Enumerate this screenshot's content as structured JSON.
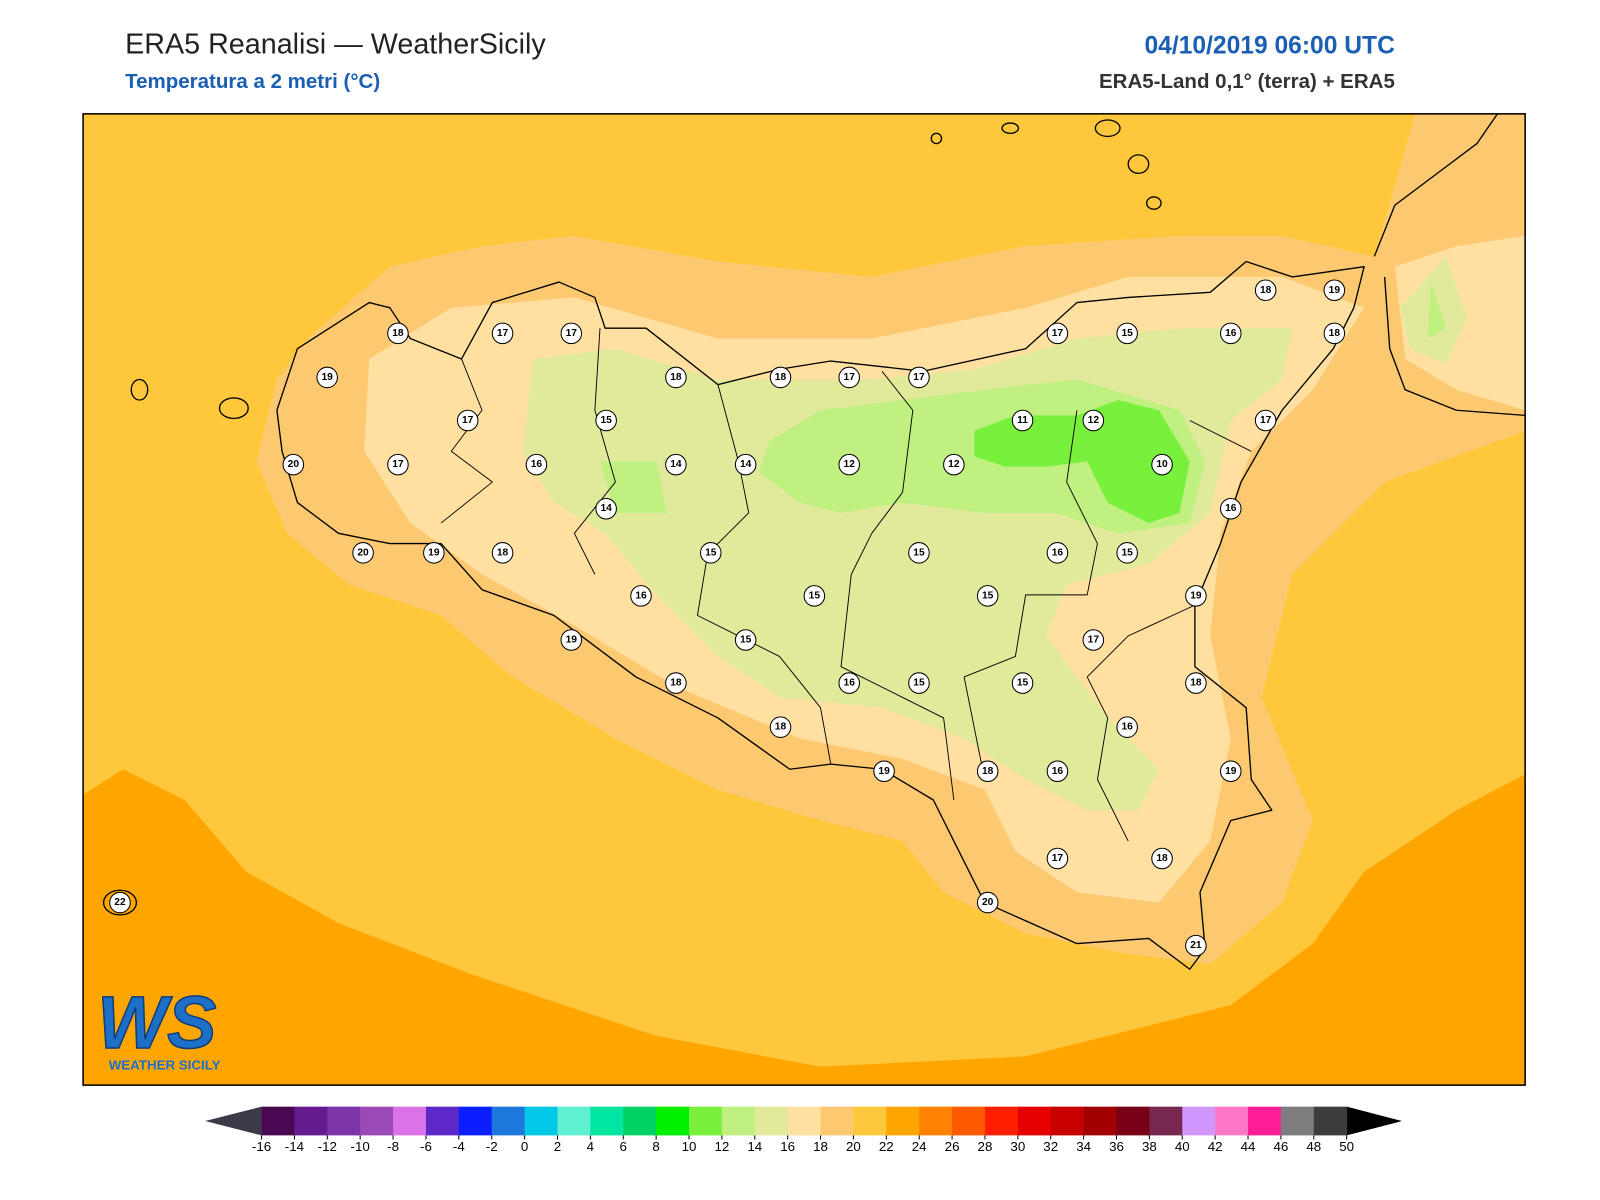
{
  "header": {
    "title": "ERA5 Reanalisi — WeatherSicily",
    "subtitle": "Temperatura a 2 metri (°C)",
    "datetime": "04/10/2019 06:00 UTC",
    "source": "ERA5-Land 0,1° (terra) + ERA5"
  },
  "stations": [
    18,
    17,
    17,
    19,
    18,
    18,
    17,
    17,
    17,
    15,
    20,
    17,
    16,
    14,
    14,
    12,
    14,
    20,
    19,
    18,
    15,
    16,
    15,
    19,
    15,
    18,
    16,
    18,
    19,
    11,
    12,
    12,
    10,
    17,
    15,
    16,
    18,
    19,
    18,
    17,
    16,
    15,
    16,
    15,
    15,
    19,
    17,
    15,
    15,
    18,
    16,
    18,
    16,
    19,
    17,
    18,
    20,
    21,
    22
  ],
  "colorbar": {
    "ticks": [
      -16,
      -14,
      -12,
      -10,
      -8,
      -6,
      -4,
      -2,
      0,
      2,
      4,
      6,
      8,
      10,
      12,
      14,
      16,
      18,
      20,
      22,
      24,
      26,
      28,
      30,
      32,
      34,
      36,
      38,
      40,
      42,
      44,
      46,
      48,
      50
    ],
    "colors": [
      "#4a0852",
      "#661a8f",
      "#7c34a6",
      "#9b4ab8",
      "#dc72e8",
      "#5c28c8",
      "#0a1eff",
      "#1c78dc",
      "#00c8e6",
      "#5ef0d0",
      "#00e6a0",
      "#00d264",
      "#00f000",
      "#78f03c",
      "#c0f080",
      "#e1e99a",
      "#ffe0a0",
      "#fcc870",
      "#ffc83c",
      "#ffa500",
      "#ff8200",
      "#ff5a00",
      "#ff1e00",
      "#e60000",
      "#c80000",
      "#a00000",
      "#780018",
      "#782850",
      "#d296ff",
      "#ff78c8",
      "#ff1e96",
      "#7d7d7d",
      "#3c3c3c"
    ],
    "under_color": "#3a3a48",
    "over_color": "#000000"
  },
  "logo": {
    "mark": "WS",
    "text": "WEATHER SICILY"
  }
}
